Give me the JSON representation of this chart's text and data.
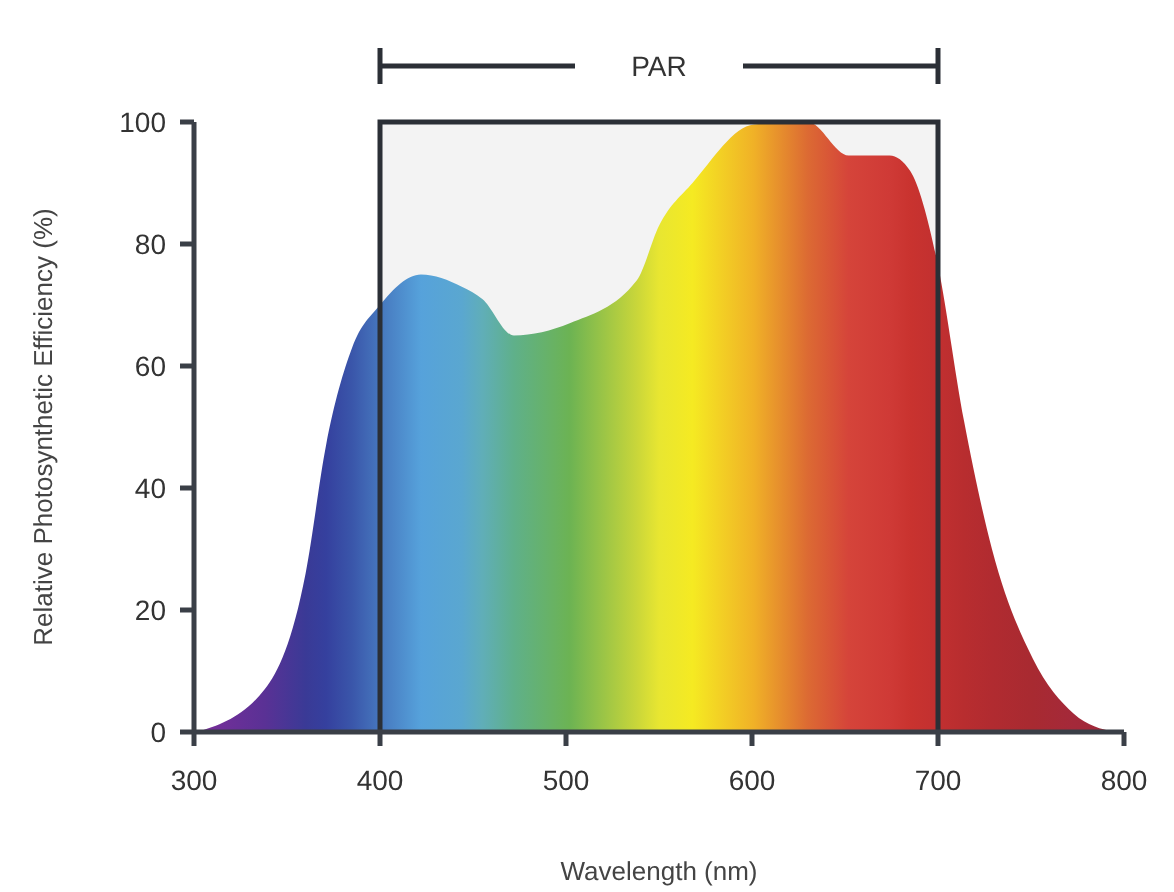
{
  "chart_data": {
    "type": "area",
    "xlabel": "Wavelength (nm)",
    "ylabel": "Relative Photosynthetic Efficiency (%)",
    "xlim": [
      300,
      800
    ],
    "xticks": [
      300,
      400,
      500,
      600,
      700,
      800
    ],
    "ylim": [
      0,
      100
    ],
    "yticks": [
      0,
      20,
      40,
      60,
      80,
      100
    ],
    "grid": false,
    "bands": [
      {
        "axis": "x",
        "from": 400,
        "to": 700,
        "label": "PAR",
        "color": "#2b2f36"
      }
    ],
    "series": [
      {
        "x": [
          302,
          338,
          360,
          371,
          385,
          400,
          422,
          444,
          455,
          472,
          502,
          538,
          550,
          568,
          601,
          630,
          652,
          674,
          685,
          699,
          714,
          729,
          751,
          773,
          795
        ],
        "values": [
          0,
          7,
          26,
          47,
          63,
          70,
          75,
          73,
          71,
          65,
          67,
          74,
          83,
          90,
          99.6,
          100,
          94.5,
          94.5,
          92,
          78,
          51,
          30,
          12,
          3,
          0
        ],
        "colors": [
          "#7a2e9a",
          "#5a3195",
          "#3a3a96",
          "#35409e",
          "#3a56aa",
          "#4677be",
          "#56a2db",
          "#5aa7d0",
          "#60aeb8",
          "#5fb08a",
          "#6cb353",
          "#c9d63a",
          "#e8e631",
          "#f5ea22",
          "#f0b127",
          "#dc6a33",
          "#d5443a",
          "#cf3a36",
          "#c9332f",
          "#c23030",
          "#b82d2f",
          "#b12b30",
          "#a82a31",
          "#a4293a",
          "#9e2839"
        ]
      }
    ]
  }
}
